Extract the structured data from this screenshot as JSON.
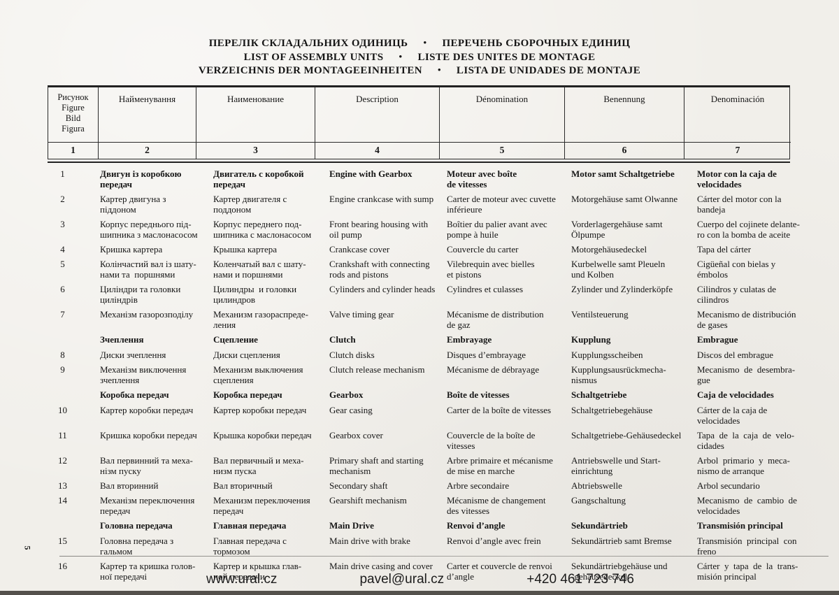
{
  "page_number": "5",
  "title": {
    "separator": "•",
    "lines": [
      {
        "left": "ПЕРЕЛІК СКЛАДАЛЬНИХ ОДИНИЦЬ",
        "right": "ПЕРЕЧЕНЬ СБОРОЧНЫХ ЕДИНИЦ"
      },
      {
        "left": "LIST OF ASSEMBLY UNITS",
        "right": "LISTE DES UNITES DE MONTAGE"
      },
      {
        "left": "VERZEICHNIS DER MONTAGEEINHEITEN",
        "right": "LISTA DE UNIDADES DE MONTAJE"
      }
    ]
  },
  "table": {
    "figure_header": "Рисунок\nFigure\nBild\nFigura",
    "column_headers": [
      "Найменування",
      "Наименование",
      "Description",
      "Dénomination",
      "Benennung",
      "Denominación"
    ],
    "column_numbers": [
      "1",
      "2",
      "3",
      "4",
      "5",
      "6",
      "7"
    ],
    "rows": [
      {
        "type": "item",
        "bold": true,
        "fig": "1",
        "uk": "Двигун із коробкою\nпередач",
        "ru": "Двигатель с коробкой\nпередач",
        "en": "Engine with Gearbox",
        "fr": "Moteur avec boîte\nde vitesses",
        "de": "Motor samt Schaltgetriebe",
        "es": "Motor con la caja de\nvelocidades"
      },
      {
        "type": "item",
        "bold": false,
        "fig": "2",
        "uk": "Картер двигуна з\nпіддоном",
        "ru": "Картер двигателя с\nподдоном",
        "en": "Engine crankcase with sump",
        "fr": "Carter de moteur avec cuvette\ninférieure",
        "de": "Motorgehäuse samt Olwanne",
        "es": "Cárter del motor con la\nbandeja"
      },
      {
        "type": "item",
        "bold": false,
        "fig": "3",
        "uk": "Корпус переднього під-\nшипника з маслонасосом",
        "ru": "Корпус переднего под-\nшипника с маслонасосом",
        "en": "Front bearing housing with\noil pump",
        "fr": "Boîtier du palier avant avec\npompe à huile",
        "de": "Vorderlagergehäuse samt\nÖlpumpe",
        "es": "Cuerpo del cojinete delante-\nro con la bomba de aceite"
      },
      {
        "type": "item",
        "bold": false,
        "fig": "4",
        "uk": "Кришка картера",
        "ru": "Крышка картера",
        "en": "Crankcase cover",
        "fr": "Couvercle du carter",
        "de": "Motorgehäusedeckel",
        "es": "Tapa del cárter"
      },
      {
        "type": "item",
        "bold": false,
        "fig": "5",
        "uk": "Колінчастий вал із шату-\nнами та  поршнями",
        "ru": "Коленчатый вал с шату-\nнами и поршнями",
        "en": "Crankshaft with connecting\nrods and pistons",
        "fr": "Vilebrequin avec bielles\net pistons",
        "de": "Kurbelwelle samt Pleueln\nund Kolben",
        "es": "Cigüeñal con bielas y\némbolos"
      },
      {
        "type": "item",
        "bold": false,
        "fig": "6",
        "uk": "Циліндри та головки\nциліндрів",
        "ru": "Цилиндры  и головки\nцилиндров",
        "en": "Cylinders and cylinder heads",
        "fr": "Cylindres et culasses",
        "de": "Zylinder und Zylinderköpfe",
        "es": "Cilindros y culatas de\ncilindros"
      },
      {
        "type": "item",
        "bold": false,
        "fig": "7",
        "uk": "Механізм газорозподілу",
        "ru": "Механизм газораспреде-\nления",
        "en": "Valve timing gear",
        "fr": "Mécanisme de distribution\nde gaz",
        "de": "Ventilsteuerung",
        "es": "Mecanismo de distribución\nde gases"
      },
      {
        "type": "section",
        "bold": true,
        "fig": "",
        "uk": "Зчеплення",
        "ru": "Сцепление",
        "en": "Clutch",
        "fr": "Embrayage",
        "de": "Kupplung",
        "es": "Embrague"
      },
      {
        "type": "item",
        "bold": false,
        "fig": "8",
        "uk": "Диски зчеплення",
        "ru": "Диски сцепления",
        "en": "Clutch disks",
        "fr": "Disques d’embrayage",
        "de": "Kupplungsscheiben",
        "es": "Discos del embrague"
      },
      {
        "type": "item",
        "bold": false,
        "fig": "9",
        "uk": "Механізм виключення\nзчеплення",
        "ru": "Механизм выключения\nсцепления",
        "en": "Clutch release mechanism",
        "fr": "Mécanisme de débrayage",
        "de": "Kupplungsausrückmecha-\nnismus",
        "es": "Mecanismo  de  desembra-\ngue"
      },
      {
        "type": "section",
        "bold": true,
        "fig": "",
        "uk": "Коробка передач",
        "ru": "Коробка передач",
        "en": "Gearbox",
        "fr": "Boîte de vitesses",
        "de": "Schaltgetriebe",
        "es": "Caja de velocidades"
      },
      {
        "type": "item",
        "bold": false,
        "fig": "10",
        "uk": "Картер коробки передач",
        "ru": "Картер коробки передач",
        "en": "Gear casing",
        "fr": "Carter de la boîte de vitesses",
        "de": "Schaltgetriebegehäuse",
        "es": "Cárter de la caja de\nvelocidades"
      },
      {
        "type": "item",
        "bold": false,
        "fig": "11",
        "uk": "Кришка коробки передач",
        "ru": "Крышка коробки передач",
        "en": "Gearbox cover",
        "fr": "Couvercle de la boîte de\nvitesses",
        "de": "Schaltgetriebe-Gehäusedeckel",
        "es": "Tapa  de  la  caja  de  velo-\ncidades"
      },
      {
        "type": "item",
        "bold": false,
        "fig": "12",
        "uk": "Вал первинний та меха-\nнізм пуску",
        "ru": "Вал первичный и меха-\nнизм пуска",
        "en": "Primary shaft and starting\nmechanism",
        "fr": "Arbre primaire et mécanisme\nde mise en marche",
        "de": "Antriebswelle und Start-\neinrichtung",
        "es": "Arbol  primario  y  meca-\nnismo de arranque"
      },
      {
        "type": "item",
        "bold": false,
        "fig": "13",
        "uk": "Вал вторинний",
        "ru": "Вал вторичный",
        "en": "Secondary shaft",
        "fr": "Arbre secondaire",
        "de": "Abtriebswelle",
        "es": "Arbol secundario"
      },
      {
        "type": "item",
        "bold": false,
        "fig": "14",
        "uk": "Механізм переключення\nпередач",
        "ru": "Механизм переключения\nпередач",
        "en": "Gearshift mechanism",
        "fr": "Mécanisme de changement\ndes vitesses",
        "de": "Gangschaltung",
        "es": "Mecanismo  de  cambio  de\nvelocidades"
      },
      {
        "type": "section",
        "bold": true,
        "fig": "",
        "uk": "Головна передача",
        "ru": "Главная передача",
        "en": "Main Drive",
        "fr": "Renvoi d’angle",
        "de": "Sekundärtrieb",
        "es": "Transmisión principal"
      },
      {
        "type": "item",
        "bold": false,
        "fig": "15",
        "uk": "Головна передача з\nгальмом",
        "ru": "Главная передача с\nтормозом",
        "en": "Main drive with brake",
        "fr": "Renvoi d’angle avec frein",
        "de": "Sekundärtrieb samt Bremse",
        "es": "Transmisión  principal  con\nfreno"
      },
      {
        "type": "item",
        "bold": false,
        "fig": "16",
        "uk": "Картер та кришка голов-\nної передачі",
        "ru": "Картер и крышка глав-\nной передачи",
        "en": "Main drive casing and cover",
        "fr": "Carter et couvercle de renvoi\nd’angle",
        "de": "Sekundärtriebgehäuse und\n-gehäusedeckel",
        "es": "Cárter  y  tapa  de  la  trans-\nmisión principal"
      }
    ]
  },
  "footer": {
    "website": "www.ural.cz",
    "email": "pavel@ural.cz",
    "phone": "+420 461 723 746"
  }
}
